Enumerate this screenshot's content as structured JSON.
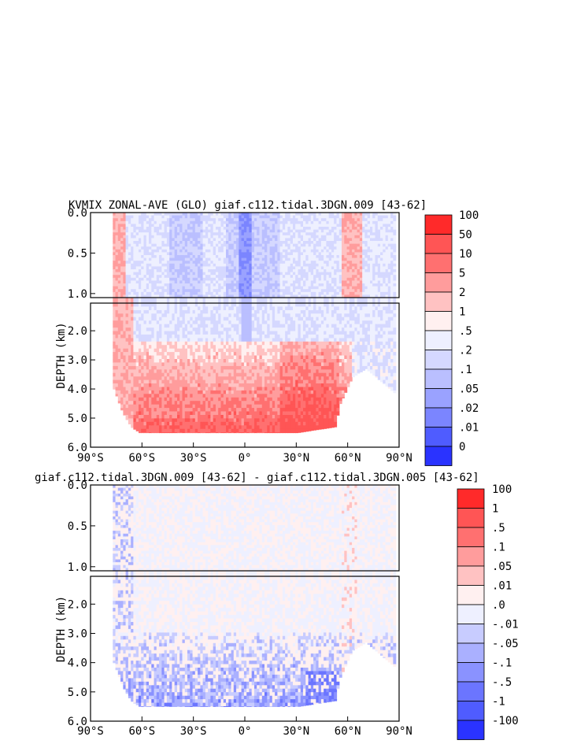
{
  "chart_data": [
    {
      "type": "heatmap",
      "title": "KVMIX ZONAL-AVE (GLO) giaf.c112.tidal.3DGN.009 [43-62]",
      "ylabel": "DEPTH (km)",
      "x_ticks": [
        "90°S",
        "60°S",
        "30°S",
        "0°",
        "30°N",
        "60°N",
        "90°N"
      ],
      "y_ticks_upper": [
        "0.0",
        "0.5",
        "1.0"
      ],
      "y_ticks_lower": [
        "2.0",
        "3.0",
        "4.0",
        "5.0",
        "6.0"
      ],
      "xlim": [
        -90,
        90
      ],
      "ylim_upper_km": [
        0,
        1.05
      ],
      "ylim_lower_km": [
        1.05,
        6.0
      ],
      "colorbar_labels": [
        "100",
        "50",
        "10",
        "5",
        "2",
        "1",
        ".5",
        ".2",
        ".1",
        ".05",
        ".02",
        ".01",
        "0"
      ],
      "colorbar_colors": [
        "#ff2a2a",
        "#ff5555",
        "#ff7070",
        "#ff9c9c",
        "#ffc2c2",
        "#fff0f0",
        "#eef0ff",
        "#d5d8ff",
        "#babfff",
        "#9aa2ff",
        "#7b85ff",
        "#4f5cff",
        "#2a33ff"
      ],
      "depth_profile_km": [
        {
          "lat": -77,
          "bottom": 4.0
        },
        {
          "lat": -72,
          "bottom": 4.8
        },
        {
          "lat": -67,
          "bottom": 5.3
        },
        {
          "lat": -62,
          "bottom": 5.5
        },
        {
          "lat": -40,
          "bottom": 5.5
        },
        {
          "lat": 0,
          "bottom": 5.5
        },
        {
          "lat": 30,
          "bottom": 5.5
        },
        {
          "lat": 52,
          "bottom": 5.3
        },
        {
          "lat": 55,
          "bottom": 4.5
        },
        {
          "lat": 62,
          "bottom": 3.6
        },
        {
          "lat": 70,
          "bottom": 3.3
        },
        {
          "lat": 78,
          "bottom": 3.7
        },
        {
          "lat": 88,
          "bottom": 4.2
        }
      ]
    },
    {
      "type": "heatmap",
      "title": "giaf.c112.tidal.3DGN.009 [43-62] - giaf.c112.tidal.3DGN.005 [43-62]",
      "ylabel": "DEPTH (km)",
      "x_ticks": [
        "90°S",
        "60°S",
        "30°S",
        "0°",
        "30°N",
        "60°N",
        "90°N"
      ],
      "y_ticks_upper": [
        "0.0",
        "0.5",
        "1.0"
      ],
      "y_ticks_lower": [
        "2.0",
        "3.0",
        "4.0",
        "5.0",
        "6.0"
      ],
      "xlim": [
        -90,
        90
      ],
      "ylim_upper_km": [
        0,
        1.05
      ],
      "ylim_lower_km": [
        1.05,
        6.0
      ],
      "colorbar_labels": [
        "100",
        "1",
        ".5",
        ".1",
        ".05",
        ".01",
        ".0",
        "-.01",
        "-.05",
        "-.1",
        "-.5",
        "-1",
        "-100"
      ],
      "colorbar_colors": [
        "#ff2a2a",
        "#ff5555",
        "#ff7070",
        "#ff9c9c",
        "#ffc2c2",
        "#fff0f0",
        "#eef0ff",
        "#c8ccff",
        "#aab0ff",
        "#8a92ff",
        "#6b75ff",
        "#4f5cff",
        "#2a33ff"
      ]
    }
  ]
}
